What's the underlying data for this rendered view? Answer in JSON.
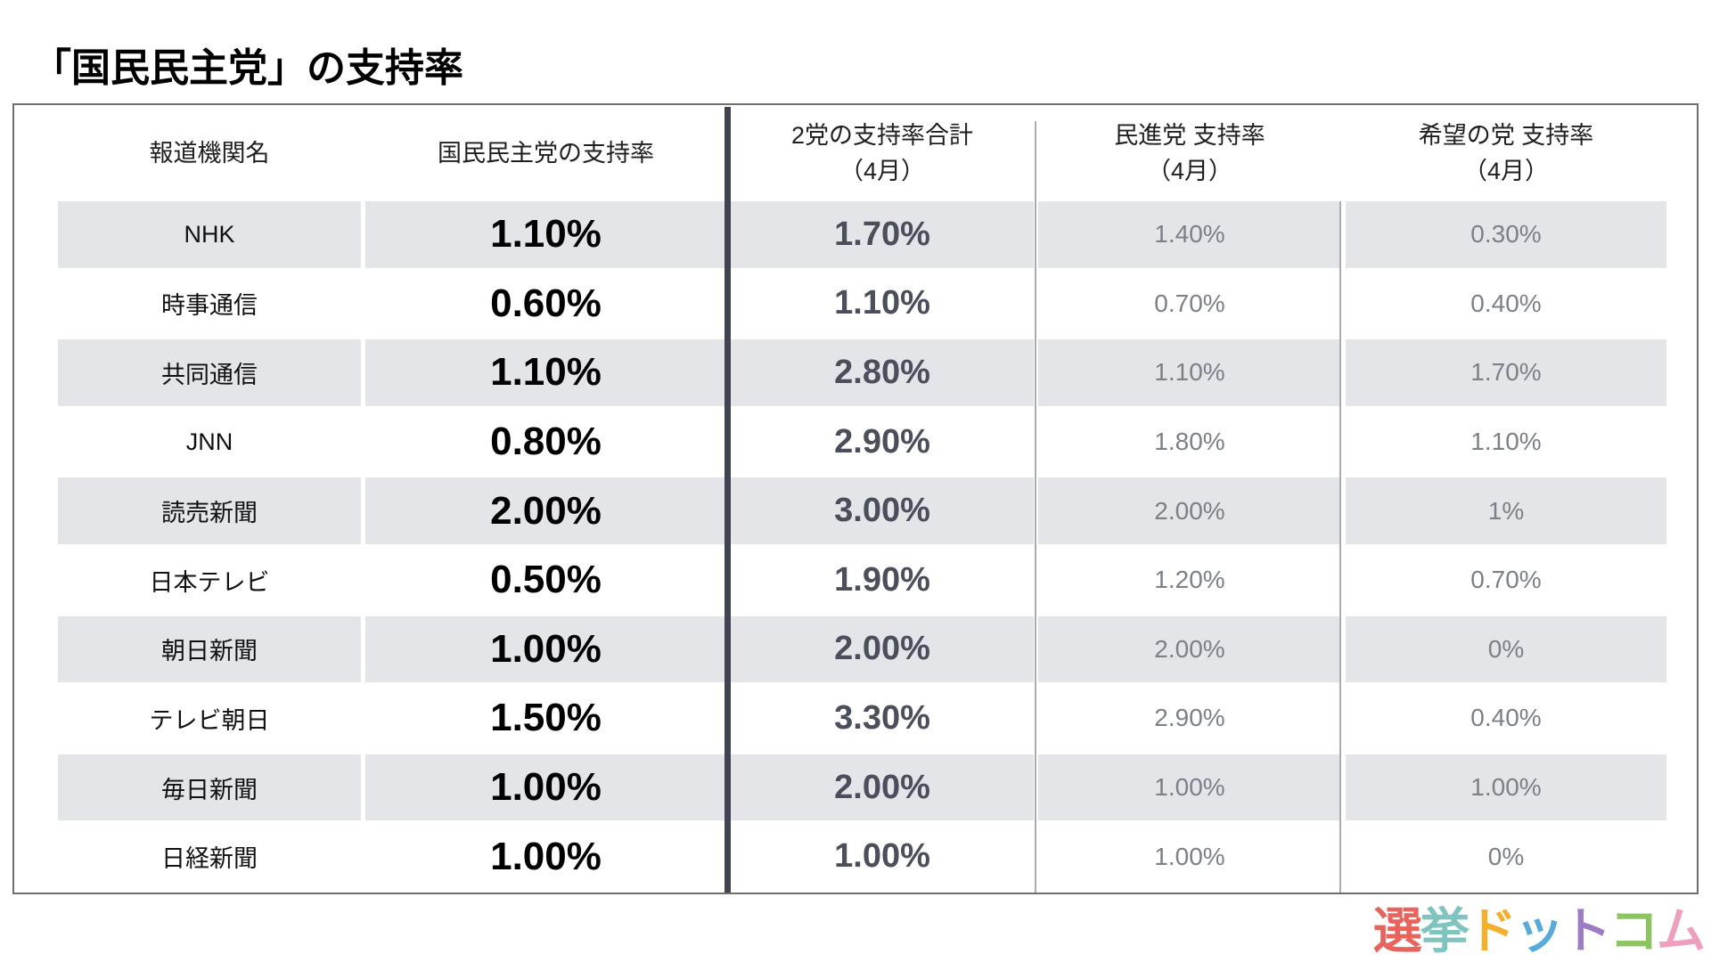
{
  "title": "「国民民主党」の支持率",
  "table": {
    "headers": {
      "org": "報道機関名",
      "kokumin": "国民民主党の支持率",
      "total": "2党の支持率合計",
      "total_sub": "（4月）",
      "minshin": "民進党 支持率",
      "minshin_sub": "（4月）",
      "kibou": "希望の党 支持率",
      "kibou_sub": "（4月）"
    },
    "rows": [
      {
        "org": "NHK",
        "kokumin": "1.10%",
        "total": "1.70%",
        "minshin": "1.40%",
        "kibou": "0.30%"
      },
      {
        "org": "時事通信",
        "kokumin": "0.60%",
        "total": "1.10%",
        "minshin": "0.70%",
        "kibou": "0.40%"
      },
      {
        "org": "共同通信",
        "kokumin": "1.10%",
        "total": "2.80%",
        "minshin": "1.10%",
        "kibou": "1.70%"
      },
      {
        "org": "JNN",
        "kokumin": "0.80%",
        "total": "2.90%",
        "minshin": "1.80%",
        "kibou": "1.10%"
      },
      {
        "org": "読売新聞",
        "kokumin": "2.00%",
        "total": "3.00%",
        "minshin": "2.00%",
        "kibou": "1%"
      },
      {
        "org": "日本テレビ",
        "kokumin": "0.50%",
        "total": "1.90%",
        "minshin": "1.20%",
        "kibou": "0.70%"
      },
      {
        "org": "朝日新聞",
        "kokumin": "1.00%",
        "total": "2.00%",
        "minshin": "2.00%",
        "kibou": "0%"
      },
      {
        "org": "テレビ朝日",
        "kokumin": "1.50%",
        "total": "3.30%",
        "minshin": "2.90%",
        "kibou": "0.40%"
      },
      {
        "org": "毎日新聞",
        "kokumin": "1.00%",
        "total": "2.00%",
        "minshin": "1.00%",
        "kibou": "1.00%"
      },
      {
        "org": "日経新聞",
        "kokumin": "1.00%",
        "total": "1.00%",
        "minshin": "1.00%",
        "kibou": "0%"
      }
    ]
  },
  "colors": {
    "row_shade": "#E4E5E9",
    "dark_divider": "#3F4450",
    "light_divider": "#A8ACB2",
    "total_text": "#4A4F5B",
    "secondary_text": "#7B8089"
  },
  "logo": {
    "name": "選挙ドットコム",
    "chars": [
      {
        "char": "選",
        "color": "#E8635B"
      },
      {
        "char": "挙",
        "color": "#7FC4BE"
      },
      {
        "char": "ド",
        "color": "#F4B02C"
      },
      {
        "char": "ッ",
        "color": "#57ABDC"
      },
      {
        "char": "ト",
        "color": "#9C7DC2"
      },
      {
        "char": "コ",
        "color": "#8CC45E"
      },
      {
        "char": "ム",
        "color": "#F09EC0"
      }
    ]
  }
}
